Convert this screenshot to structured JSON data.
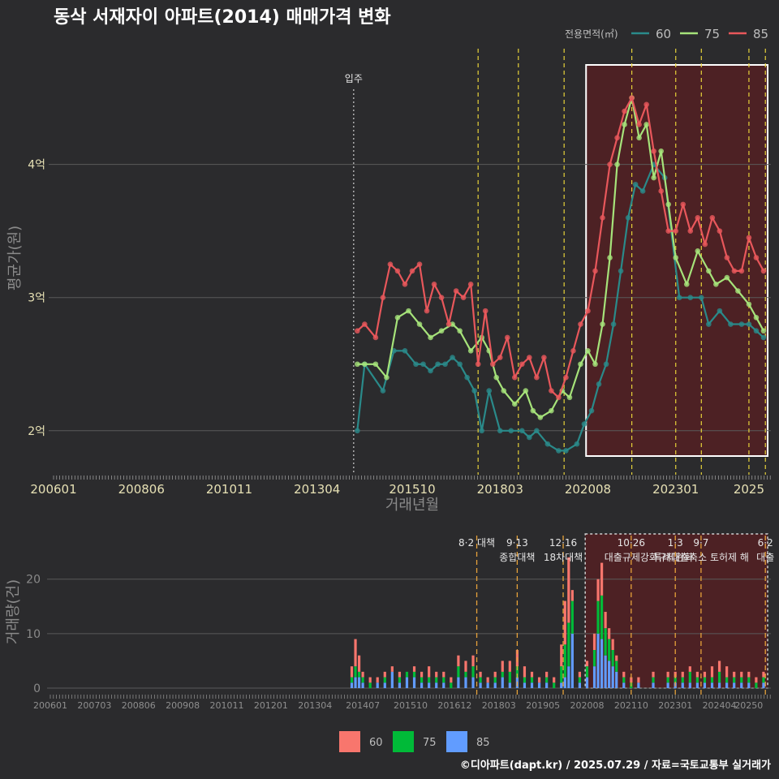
{
  "title": "동삭 서재자이 아파트(2014) 매매가격 변화",
  "footer": "©디아파트(dapt.kr) / 2025.07.29 / 자료=국토교통부 실거래가",
  "colors": {
    "background": "#2b2b2d",
    "line60": "#2a8a8a",
    "line75": "#a6e37a",
    "line85": "#e8575b",
    "bar60": "#f8766d",
    "bar75": "#00ba38",
    "bar85": "#619cff",
    "policy": "#e6d23a",
    "highlight": "#5a1f22"
  },
  "chart_data": [
    {
      "type": "line",
      "ylabel": "평균가(원)",
      "xlabel": "거래년월",
      "legend_title": "전용면적(㎡)",
      "legend_position": "top-right",
      "ylim": [
        1.7,
        4.9
      ],
      "xlim": [
        2006.0,
        2025.6
      ],
      "y_ticks": [
        {
          "v": 2,
          "label": "2억"
        },
        {
          "v": 3,
          "label": "3억"
        },
        {
          "v": 4,
          "label": "4억"
        }
      ],
      "x_ticks": [
        {
          "v": 2006.0,
          "label": "200601"
        },
        {
          "v": 2008.4,
          "label": "200806"
        },
        {
          "v": 2010.8,
          "label": "201011"
        },
        {
          "v": 2013.2,
          "label": "201304"
        },
        {
          "v": 2015.8,
          "label": "201510"
        },
        {
          "v": 2018.2,
          "label": "201803"
        },
        {
          "v": 2020.6,
          "label": "202008"
        },
        {
          "v": 2023.0,
          "label": "202301"
        },
        {
          "v": 2025.0,
          "label": "2025"
        }
      ],
      "move_in": {
        "x": 2014.2,
        "label": "입주"
      },
      "policy_lines": [
        2017.6,
        2018.7,
        2019.95,
        2021.8,
        2023.0,
        2023.7,
        2025.0,
        2025.45
      ],
      "highlight_range": [
        2020.55,
        2025.6
      ],
      "series": [
        {
          "name": "60",
          "x": [
            2014.3,
            2014.5,
            2015.0,
            2015.3,
            2015.6,
            2015.9,
            2016.1,
            2016.3,
            2016.5,
            2016.7,
            2016.9,
            2017.1,
            2017.3,
            2017.5,
            2017.7,
            2017.9,
            2018.2,
            2018.5,
            2018.8,
            2019.0,
            2019.2,
            2019.5,
            2019.8,
            2020.0,
            2020.3,
            2020.5,
            2020.7,
            2020.9,
            2021.1,
            2021.3,
            2021.5,
            2021.7,
            2021.9,
            2022.1,
            2022.4,
            2022.7,
            2023.1,
            2023.4,
            2023.7,
            2023.9,
            2024.2,
            2024.5,
            2024.8,
            2025.0,
            2025.2,
            2025.4
          ],
          "y": [
            2.0,
            2.5,
            2.3,
            2.6,
            2.6,
            2.5,
            2.5,
            2.45,
            2.5,
            2.5,
            2.55,
            2.5,
            2.4,
            2.3,
            2.0,
            2.3,
            2.0,
            2.0,
            2.0,
            1.95,
            2.0,
            1.9,
            1.85,
            1.85,
            1.9,
            2.05,
            2.15,
            2.35,
            2.5,
            2.8,
            3.2,
            3.6,
            3.85,
            3.8,
            4.0,
            3.9,
            3.0,
            3.0,
            3.0,
            2.8,
            2.9,
            2.8,
            2.8,
            2.8,
            2.75,
            2.7
          ]
        },
        {
          "name": "75",
          "x": [
            2014.3,
            2014.5,
            2014.8,
            2015.1,
            2015.4,
            2015.7,
            2016.0,
            2016.3,
            2016.6,
            2016.9,
            2017.1,
            2017.4,
            2017.7,
            2017.9,
            2018.1,
            2018.3,
            2018.6,
            2018.9,
            2019.1,
            2019.3,
            2019.6,
            2019.9,
            2020.1,
            2020.4,
            2020.6,
            2020.8,
            2021.0,
            2021.2,
            2021.4,
            2021.6,
            2021.8,
            2022.0,
            2022.2,
            2022.4,
            2022.6,
            2022.8,
            2023.0,
            2023.3,
            2023.6,
            2023.9,
            2024.1,
            2024.4,
            2024.7,
            2025.0,
            2025.2,
            2025.4
          ],
          "y": [
            2.5,
            2.5,
            2.5,
            2.4,
            2.85,
            2.9,
            2.8,
            2.7,
            2.75,
            2.8,
            2.75,
            2.6,
            2.7,
            2.6,
            2.4,
            2.3,
            2.2,
            2.3,
            2.15,
            2.1,
            2.15,
            2.3,
            2.25,
            2.5,
            2.6,
            2.5,
            2.8,
            3.3,
            4.0,
            4.3,
            4.5,
            4.2,
            4.3,
            3.9,
            4.1,
            3.7,
            3.3,
            3.1,
            3.35,
            3.2,
            3.1,
            3.15,
            3.05,
            2.95,
            2.85,
            2.75
          ]
        },
        {
          "name": "85",
          "x": [
            2014.3,
            2014.5,
            2014.8,
            2015.0,
            2015.2,
            2015.4,
            2015.6,
            2015.8,
            2016.0,
            2016.2,
            2016.4,
            2016.6,
            2016.8,
            2017.0,
            2017.2,
            2017.4,
            2017.6,
            2017.8,
            2018.0,
            2018.2,
            2018.4,
            2018.6,
            2018.8,
            2019.0,
            2019.2,
            2019.4,
            2019.6,
            2019.8,
            2020.0,
            2020.2,
            2020.4,
            2020.6,
            2020.8,
            2021.0,
            2021.2,
            2021.4,
            2021.6,
            2021.8,
            2022.0,
            2022.2,
            2022.4,
            2022.6,
            2022.8,
            2023.0,
            2023.2,
            2023.4,
            2023.6,
            2023.8,
            2024.0,
            2024.2,
            2024.4,
            2024.6,
            2024.8,
            2025.0,
            2025.2,
            2025.4
          ],
          "y": [
            2.75,
            2.8,
            2.7,
            3.0,
            3.25,
            3.2,
            3.1,
            3.2,
            3.25,
            2.9,
            3.1,
            3.0,
            2.8,
            3.05,
            3.0,
            3.1,
            2.5,
            2.9,
            2.5,
            2.55,
            2.7,
            2.4,
            2.5,
            2.55,
            2.4,
            2.55,
            2.3,
            2.25,
            2.4,
            2.6,
            2.8,
            2.9,
            3.2,
            3.6,
            4.0,
            4.2,
            4.4,
            4.5,
            4.3,
            4.45,
            4.1,
            3.8,
            3.5,
            3.5,
            3.7,
            3.5,
            3.6,
            3.4,
            3.6,
            3.5,
            3.3,
            3.2,
            3.2,
            3.45,
            3.3,
            3.2
          ]
        }
      ]
    },
    {
      "type": "bar",
      "ylabel": "거래량(건)",
      "ylim": [
        0,
        28
      ],
      "y_ticks": [
        0,
        10,
        20
      ],
      "legend_position": "bottom",
      "x_ticks": [
        {
          "v": 2006.0,
          "label": "200601"
        },
        {
          "v": 2007.2,
          "label": "200703"
        },
        {
          "v": 2008.4,
          "label": "200806"
        },
        {
          "v": 2009.6,
          "label": "200908"
        },
        {
          "v": 2010.8,
          "label": "201011"
        },
        {
          "v": 2012.0,
          "label": "201201"
        },
        {
          "v": 2013.2,
          "label": "201304"
        },
        {
          "v": 2014.5,
          "label": "201407"
        },
        {
          "v": 2015.8,
          "label": "201510"
        },
        {
          "v": 2017.0,
          "label": "201612"
        },
        {
          "v": 2018.2,
          "label": "201803"
        },
        {
          "v": 2019.4,
          "label": "201905"
        },
        {
          "v": 2020.6,
          "label": "202008"
        },
        {
          "v": 2021.8,
          "label": "202110"
        },
        {
          "v": 2023.0,
          "label": "202301"
        },
        {
          "v": 2024.2,
          "label": "202404"
        },
        {
          "v": 2025.0,
          "label": "20250"
        }
      ],
      "policies": [
        {
          "x": 2017.6,
          "date": "8·2 대책",
          "name": ""
        },
        {
          "x": 2018.7,
          "date": "9·13",
          "name": "종합대책"
        },
        {
          "x": 2019.95,
          "date": "12·16",
          "name": "18차대책"
        },
        {
          "x": 2021.8,
          "date": "10·26",
          "name": "대출규제강화"
        },
        {
          "x": 2023.0,
          "date": "1·3",
          "name": "규제완화"
        },
        {
          "x": 2023.7,
          "date": "9·7",
          "name": "특례대출축소 토허제 해"
        },
        {
          "x": 2025.45,
          "date": "6·2",
          "name": "대출"
        }
      ],
      "highlight_range": [
        2020.55,
        2025.6
      ],
      "series_names": [
        "60",
        "75",
        "85"
      ],
      "volume_samples": [
        [
          2014.2,
          2,
          1,
          1
        ],
        [
          2014.3,
          5,
          2,
          2
        ],
        [
          2014.4,
          3,
          1,
          2
        ],
        [
          2014.5,
          1,
          1,
          1
        ],
        [
          2014.7,
          1,
          1,
          0
        ],
        [
          2014.9,
          1,
          0,
          1
        ],
        [
          2015.1,
          1,
          1,
          1
        ],
        [
          2015.3,
          1,
          0,
          3
        ],
        [
          2015.5,
          1,
          1,
          1
        ],
        [
          2015.7,
          0,
          1,
          2
        ],
        [
          2015.9,
          1,
          1,
          2
        ],
        [
          2016.1,
          1,
          1,
          1
        ],
        [
          2016.3,
          2,
          1,
          1
        ],
        [
          2016.5,
          1,
          1,
          1
        ],
        [
          2016.7,
          1,
          1,
          1
        ],
        [
          2016.9,
          1,
          1,
          0
        ],
        [
          2017.1,
          2,
          2,
          2
        ],
        [
          2017.3,
          2,
          1,
          2
        ],
        [
          2017.5,
          2,
          2,
          2
        ],
        [
          2017.7,
          1,
          1,
          1
        ],
        [
          2017.9,
          1,
          0,
          1
        ],
        [
          2018.1,
          1,
          1,
          1
        ],
        [
          2018.3,
          2,
          1,
          2
        ],
        [
          2018.5,
          2,
          2,
          1
        ],
        [
          2018.7,
          3,
          2,
          2
        ],
        [
          2018.9,
          2,
          1,
          1
        ],
        [
          2019.1,
          1,
          1,
          1
        ],
        [
          2019.3,
          1,
          0,
          1
        ],
        [
          2019.5,
          1,
          1,
          1
        ],
        [
          2019.7,
          1,
          1,
          0
        ],
        [
          2019.9,
          4,
          3,
          1
        ],
        [
          2020.0,
          8,
          6,
          2
        ],
        [
          2020.1,
          12,
          8,
          4
        ],
        [
          2020.2,
          2,
          6,
          10
        ],
        [
          2020.4,
          1,
          1,
          1
        ],
        [
          2020.6,
          1,
          2,
          2
        ],
        [
          2020.8,
          3,
          3,
          4
        ],
        [
          2020.9,
          4,
          6,
          10
        ],
        [
          2021.0,
          6,
          8,
          9
        ],
        [
          2021.1,
          3,
          5,
          6
        ],
        [
          2021.2,
          2,
          4,
          5
        ],
        [
          2021.3,
          2,
          3,
          4
        ],
        [
          2021.4,
          1,
          2,
          3
        ],
        [
          2021.6,
          1,
          1,
          1
        ],
        [
          2021.8,
          1,
          1,
          0
        ],
        [
          2022.0,
          1,
          0,
          1
        ],
        [
          2022.4,
          1,
          1,
          1
        ],
        [
          2022.8,
          1,
          1,
          1
        ],
        [
          2023.0,
          1,
          1,
          1
        ],
        [
          2023.2,
          1,
          1,
          1
        ],
        [
          2023.4,
          1,
          2,
          1
        ],
        [
          2023.6,
          1,
          1,
          1
        ],
        [
          2023.8,
          1,
          1,
          1
        ],
        [
          2024.0,
          2,
          1,
          1
        ],
        [
          2024.2,
          2,
          2,
          1
        ],
        [
          2024.4,
          2,
          1,
          1
        ],
        [
          2024.6,
          1,
          1,
          1
        ],
        [
          2024.8,
          1,
          1,
          1
        ],
        [
          2025.0,
          1,
          1,
          1
        ],
        [
          2025.2,
          1,
          1,
          0
        ],
        [
          2025.4,
          1,
          1,
          1
        ]
      ]
    }
  ]
}
